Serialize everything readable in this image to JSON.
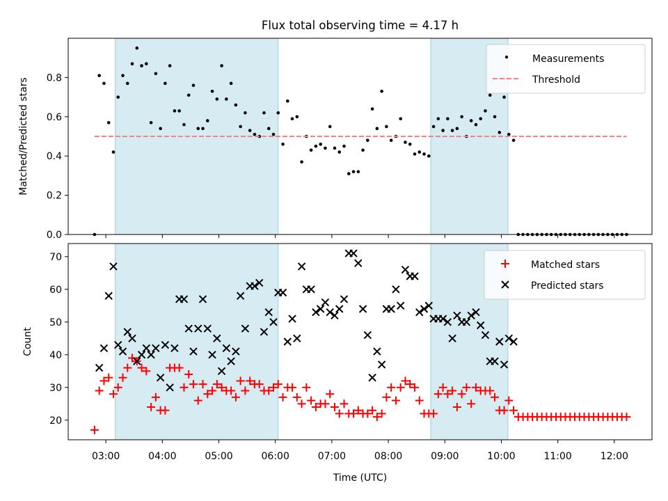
{
  "chart_data": [
    {
      "type": "scatter",
      "title": "Flux total observing time = 4.17 h",
      "xlabel": "",
      "ylabel": "Matched/Predicted stars",
      "xlim": [
        "02:20",
        "12:40"
      ],
      "ylim": [
        0,
        1.0
      ],
      "yticks": [
        0.0,
        0.2,
        0.4,
        0.6,
        0.8
      ],
      "ytick_labels": [
        "0.0",
        "0.2",
        "0.4",
        "0.6",
        "0.8"
      ],
      "grid": false,
      "legend_position": "top-right",
      "shaded_intervals": [
        [
          "03:10",
          "06:03"
        ],
        [
          "08:45",
          "10:07"
        ]
      ],
      "series": [
        {
          "name": "Measurements",
          "marker": "dot",
          "color": "#000000",
          "x": [
            "02:48",
            "02:53",
            "02:58",
            "03:03",
            "03:08",
            "03:13",
            "03:18",
            "03:23",
            "03:28",
            "03:33",
            "03:38",
            "03:43",
            "03:48",
            "03:53",
            "03:58",
            "04:03",
            "04:08",
            "04:13",
            "04:18",
            "04:23",
            "04:28",
            "04:33",
            "04:38",
            "04:43",
            "04:48",
            "04:53",
            "04:58",
            "05:03",
            "05:08",
            "05:13",
            "05:18",
            "05:23",
            "05:28",
            "05:33",
            "05:38",
            "05:43",
            "05:48",
            "05:53",
            "05:58",
            "06:03",
            "06:08",
            "06:13",
            "06:18",
            "06:23",
            "06:28",
            "06:33",
            "06:38",
            "06:43",
            "06:48",
            "06:53",
            "06:58",
            "07:03",
            "07:08",
            "07:13",
            "07:18",
            "07:23",
            "07:28",
            "07:33",
            "07:38",
            "07:43",
            "07:48",
            "07:53",
            "07:58",
            "08:03",
            "08:08",
            "08:13",
            "08:18",
            "08:23",
            "08:28",
            "08:33",
            "08:38",
            "08:43",
            "08:48",
            "08:53",
            "08:58",
            "09:03",
            "09:08",
            "09:13",
            "09:18",
            "09:23",
            "09:28",
            "09:33",
            "09:38",
            "09:43",
            "09:48",
            "09:53",
            "09:58",
            "10:03",
            "10:08",
            "10:13",
            "10:18",
            "10:23",
            "10:28",
            "10:33",
            "10:38",
            "10:43",
            "10:48",
            "10:53",
            "10:58",
            "11:03",
            "11:08",
            "11:13",
            "11:18",
            "11:23",
            "11:28",
            "11:33",
            "11:38",
            "11:43",
            "11:48",
            "11:53",
            "11:58",
            "12:03",
            "12:08",
            "12:13"
          ],
          "y": [
            0.0,
            0.81,
            0.77,
            0.57,
            0.42,
            0.7,
            0.81,
            0.77,
            0.87,
            0.95,
            0.86,
            0.87,
            0.57,
            0.82,
            0.54,
            0.77,
            0.86,
            0.63,
            0.63,
            0.56,
            0.71,
            0.76,
            0.54,
            0.54,
            0.58,
            0.73,
            0.69,
            0.86,
            0.69,
            0.77,
            0.66,
            0.55,
            0.62,
            0.53,
            0.51,
            0.5,
            0.62,
            0.54,
            0.51,
            0.62,
            0.46,
            0.68,
            0.59,
            0.6,
            0.37,
            0.5,
            0.43,
            0.45,
            0.46,
            0.44,
            0.55,
            0.44,
            0.42,
            0.45,
            0.31,
            0.32,
            0.32,
            0.43,
            0.48,
            0.64,
            0.54,
            0.73,
            0.55,
            0.48,
            0.5,
            0.59,
            0.47,
            0.46,
            0.41,
            0.42,
            0.41,
            0.4,
            0.55,
            0.59,
            0.53,
            0.59,
            0.53,
            0.54,
            0.6,
            0.5,
            0.58,
            0.56,
            0.59,
            0.63,
            0.71,
            0.6,
            0.52,
            0.7,
            0.51,
            0.48,
            0.0,
            0.0,
            0.0,
            0.0,
            0.0,
            0.0,
            0.0,
            0.0,
            0.0,
            0.0,
            0.0,
            0.0,
            0.0,
            0.0,
            0.0,
            0.0,
            0.0,
            0.0,
            0.0,
            0.0,
            0.0,
            0.0,
            0.0,
            0.0
          ]
        },
        {
          "name": "Threshold",
          "type": "line",
          "style": "dashed",
          "color": "#ff7f7f",
          "x": [
            "02:48",
            "12:13"
          ],
          "y": [
            0.5,
            0.5
          ]
        }
      ]
    },
    {
      "type": "scatter",
      "title": "",
      "xlabel": "Time (UTC)",
      "ylabel": "Count",
      "xlim": [
        "02:20",
        "12:40"
      ],
      "ylim": [
        14,
        74
      ],
      "yticks": [
        20,
        30,
        40,
        50,
        60,
        70
      ],
      "ytick_labels": [
        "20",
        "30",
        "40",
        "50",
        "60",
        "70"
      ],
      "xticks": [
        "03:00",
        "04:00",
        "05:00",
        "06:00",
        "07:00",
        "08:00",
        "09:00",
        "10:00",
        "11:00",
        "12:00"
      ],
      "grid": false,
      "legend_position": "top-right",
      "shaded_intervals": [
        [
          "03:10",
          "06:03"
        ],
        [
          "08:45",
          "10:07"
        ]
      ],
      "series": [
        {
          "name": "Matched stars",
          "marker": "plus",
          "color": "#ff0000",
          "x": [
            "02:48",
            "02:53",
            "02:58",
            "03:03",
            "03:08",
            "03:13",
            "03:18",
            "03:23",
            "03:28",
            "03:33",
            "03:38",
            "03:43",
            "03:48",
            "03:53",
            "03:58",
            "04:03",
            "04:08",
            "04:13",
            "04:18",
            "04:23",
            "04:28",
            "04:33",
            "04:38",
            "04:43",
            "04:48",
            "04:53",
            "04:58",
            "05:03",
            "05:08",
            "05:13",
            "05:18",
            "05:23",
            "05:28",
            "05:33",
            "05:38",
            "05:43",
            "05:48",
            "05:53",
            "05:58",
            "06:03",
            "06:08",
            "06:13",
            "06:18",
            "06:23",
            "06:28",
            "06:33",
            "06:38",
            "06:43",
            "06:48",
            "06:53",
            "06:58",
            "07:03",
            "07:08",
            "07:13",
            "07:18",
            "07:23",
            "07:28",
            "07:33",
            "07:38",
            "07:43",
            "07:48",
            "07:53",
            "07:58",
            "08:03",
            "08:08",
            "08:13",
            "08:18",
            "08:23",
            "08:28",
            "08:33",
            "08:38",
            "08:43",
            "08:48",
            "08:53",
            "08:58",
            "09:03",
            "09:08",
            "09:13",
            "09:18",
            "09:23",
            "09:28",
            "09:33",
            "09:38",
            "09:43",
            "09:48",
            "09:53",
            "09:58",
            "10:03",
            "10:08",
            "10:13",
            "10:18",
            "10:23",
            "10:28",
            "10:33",
            "10:38",
            "10:43",
            "10:48",
            "10:53",
            "10:58",
            "11:03",
            "11:08",
            "11:13",
            "11:18",
            "11:23",
            "11:28",
            "11:33",
            "11:38",
            "11:43",
            "11:48",
            "11:53",
            "11:58",
            "12:03",
            "12:08",
            "12:13"
          ],
          "y": [
            17,
            29,
            32,
            33,
            28,
            30,
            33,
            36,
            39,
            38,
            36,
            35,
            24,
            27,
            23,
            23,
            36,
            36,
            36,
            30,
            34,
            31,
            26,
            31,
            28,
            29,
            31,
            30,
            29,
            29,
            27,
            32,
            29,
            32,
            31,
            31,
            29,
            29,
            30,
            31,
            27,
            30,
            30,
            27,
            25,
            30,
            26,
            24,
            25,
            25,
            28,
            24,
            22,
            25,
            22,
            22,
            23,
            22,
            22,
            23,
            21,
            22,
            27,
            30,
            26,
            30,
            32,
            31,
            30,
            26,
            22,
            22,
            22,
            28,
            30,
            28,
            29,
            24,
            28,
            30,
            25,
            30,
            29,
            29,
            29,
            27,
            23,
            23,
            26,
            23,
            21,
            21,
            21,
            21,
            21,
            21,
            21,
            21,
            21,
            21,
            21,
            21,
            21,
            21,
            21,
            21,
            21,
            21,
            21,
            21,
            21,
            21,
            21,
            21
          ]
        },
        {
          "name": "Predicted stars",
          "marker": "x",
          "color": "#000000",
          "x": [
            "02:53",
            "02:58",
            "03:03",
            "03:08",
            "03:13",
            "03:18",
            "03:23",
            "03:28",
            "03:33",
            "03:38",
            "03:43",
            "03:48",
            "03:53",
            "03:58",
            "04:03",
            "04:08",
            "04:13",
            "04:18",
            "04:23",
            "04:28",
            "04:33",
            "04:38",
            "04:43",
            "04:48",
            "04:53",
            "04:58",
            "05:03",
            "05:08",
            "05:13",
            "05:18",
            "05:23",
            "05:28",
            "05:33",
            "05:38",
            "05:43",
            "05:48",
            "05:53",
            "05:58",
            "06:03",
            "06:08",
            "06:13",
            "06:18",
            "06:23",
            "06:28",
            "06:33",
            "06:38",
            "06:43",
            "06:48",
            "06:53",
            "06:58",
            "07:03",
            "07:08",
            "07:13",
            "07:18",
            "07:23",
            "07:28",
            "07:33",
            "07:38",
            "07:43",
            "07:48",
            "07:53",
            "07:58",
            "08:03",
            "08:08",
            "08:13",
            "08:18",
            "08:23",
            "08:28",
            "08:33",
            "08:38",
            "08:43",
            "08:48",
            "08:53",
            "08:58",
            "09:03",
            "09:08",
            "09:13",
            "09:18",
            "09:23",
            "09:28",
            "09:33",
            "09:38",
            "09:43",
            "09:48",
            "09:53",
            "09:58",
            "10:03",
            "10:08",
            "10:13"
          ],
          "y": [
            36,
            42,
            58,
            67,
            43,
            41,
            47,
            45,
            38,
            40,
            42,
            40,
            42,
            33,
            43,
            30,
            42,
            57,
            57,
            48,
            41,
            48,
            57,
            48,
            40,
            45,
            35,
            42,
            38,
            41,
            58,
            48,
            61,
            61,
            62,
            47,
            53,
            50,
            59,
            59,
            44,
            51,
            45,
            67,
            60,
            60,
            53,
            54,
            56,
            53,
            52,
            54,
            57,
            71,
            71,
            68,
            54,
            46,
            33,
            41,
            37,
            54,
            54,
            60,
            55,
            66,
            64,
            64,
            53,
            54,
            55,
            51,
            51,
            51,
            50,
            45,
            52,
            50,
            50,
            52,
            53,
            49,
            46,
            38,
            38,
            44,
            37,
            45,
            44
          ]
        }
      ]
    }
  ]
}
